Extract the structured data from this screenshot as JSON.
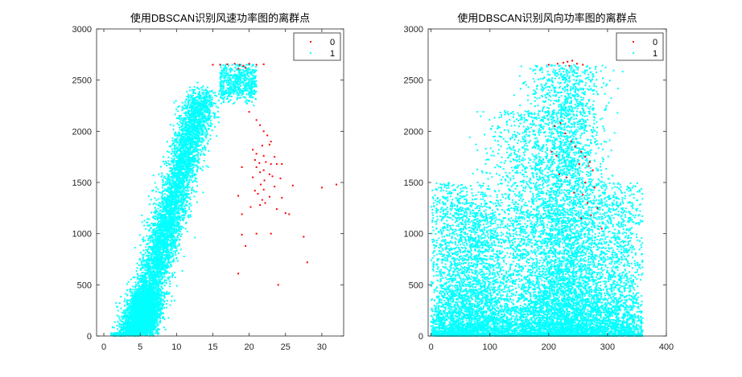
{
  "chart_data": [
    {
      "type": "scatter",
      "title": "使用DBSCAN识别风速功率图的离群点",
      "xlabel": "",
      "ylabel": "",
      "xlim": [
        -1,
        33
      ],
      "ylim": [
        0,
        3000
      ],
      "xticks": [
        0,
        5,
        10,
        15,
        20,
        25,
        30
      ],
      "yticks": [
        0,
        500,
        1000,
        1500,
        2000,
        2500,
        3000
      ],
      "grid": false,
      "legend_position": "top-right",
      "series": [
        {
          "name": "0",
          "color": "#ff0000",
          "points": [
            [
              15,
              2650
            ],
            [
              16,
              2650
            ],
            [
              17,
              2655
            ],
            [
              18,
              2660
            ],
            [
              18.7,
              2650
            ],
            [
              19.2,
              2640
            ],
            [
              20,
              2660
            ],
            [
              21,
              2650
            ],
            [
              22,
              2655
            ],
            [
              19.5,
              2620
            ],
            [
              18.5,
              2610
            ],
            [
              20,
              2190
            ],
            [
              21,
              2110
            ],
            [
              21.5,
              2060
            ],
            [
              22,
              2000
            ],
            [
              22.5,
              1960
            ],
            [
              23,
              1900
            ],
            [
              22.8,
              1870
            ],
            [
              21.8,
              1860
            ],
            [
              20.5,
              1820
            ],
            [
              21,
              1780
            ],
            [
              22,
              1760
            ],
            [
              23.5,
              1750
            ],
            [
              20.8,
              1720
            ],
            [
              22.3,
              1700
            ],
            [
              21.4,
              1690
            ],
            [
              23,
              1680
            ],
            [
              23.8,
              1680
            ],
            [
              24.5,
              1680
            ],
            [
              19,
              1650
            ],
            [
              21,
              1650
            ],
            [
              22,
              1620
            ],
            [
              21.5,
              1600
            ],
            [
              22.8,
              1580
            ],
            [
              23.2,
              1560
            ],
            [
              20.5,
              1550
            ],
            [
              24.3,
              1540
            ],
            [
              22.1,
              1520
            ],
            [
              21.6,
              1480
            ],
            [
              23.5,
              1460
            ],
            [
              26,
              1470
            ],
            [
              22,
              1430
            ],
            [
              20.8,
              1420
            ],
            [
              21.2,
              1390
            ],
            [
              18.5,
              1370
            ],
            [
              22.8,
              1360
            ],
            [
              24.5,
              1350
            ],
            [
              21.8,
              1330
            ],
            [
              22.2,
              1300
            ],
            [
              21.5,
              1280
            ],
            [
              20.2,
              1260
            ],
            [
              23.8,
              1240
            ],
            [
              25,
              1200
            ],
            [
              25.5,
              1190
            ],
            [
              19,
              1190
            ],
            [
              30,
              1450
            ],
            [
              32,
              1480
            ],
            [
              21,
              1000
            ],
            [
              23,
              1000
            ],
            [
              19,
              990
            ],
            [
              27.5,
              970
            ],
            [
              19.5,
              880
            ],
            [
              28,
              720
            ],
            [
              18.5,
              610
            ],
            [
              24,
              500
            ]
          ]
        },
        {
          "name": "1",
          "color": "#00ffff",
          "points": []
        }
      ]
    },
    {
      "type": "scatter",
      "title": "使用DBSCAN识别风向功率图的离群点",
      "xlabel": "",
      "ylabel": "",
      "xlim": [
        -5,
        400
      ],
      "ylim": [
        0,
        3000
      ],
      "xticks": [
        0,
        100,
        200,
        300,
        400
      ],
      "yticks": [
        0,
        500,
        1000,
        1500,
        2000,
        2500,
        3000
      ],
      "grid": false,
      "legend_position": "top-right",
      "series": [
        {
          "name": "0",
          "color": "#ff0000",
          "points": [
            [
              200,
              2650
            ],
            [
              215,
              2660
            ],
            [
              225,
              2670
            ],
            [
              232,
              2680
            ],
            [
              240,
              2690
            ],
            [
              248,
              2660
            ],
            [
              258,
              2650
            ],
            [
              235,
              2640
            ],
            [
              210,
              2050
            ],
            [
              220,
              2080
            ],
            [
              228,
              1980
            ],
            [
              238,
              1900
            ],
            [
              245,
              1850
            ],
            [
              255,
              1800
            ],
            [
              262,
              1750
            ],
            [
              270,
              1700
            ],
            [
              205,
              1800
            ],
            [
              213,
              1760
            ],
            [
              252,
              1680
            ],
            [
              268,
              1660
            ],
            [
              275,
              1620
            ],
            [
              218,
              1580
            ],
            [
              230,
              1550
            ],
            [
              262,
              1500
            ],
            [
              278,
              1450
            ],
            [
              243,
              1400
            ],
            [
              258,
              1380
            ],
            [
              266,
              1300
            ],
            [
              283,
              1250
            ],
            [
              272,
              1180
            ],
            [
              255,
              1150
            ],
            [
              290,
              1050
            ]
          ]
        }
      ]
    }
  ]
}
